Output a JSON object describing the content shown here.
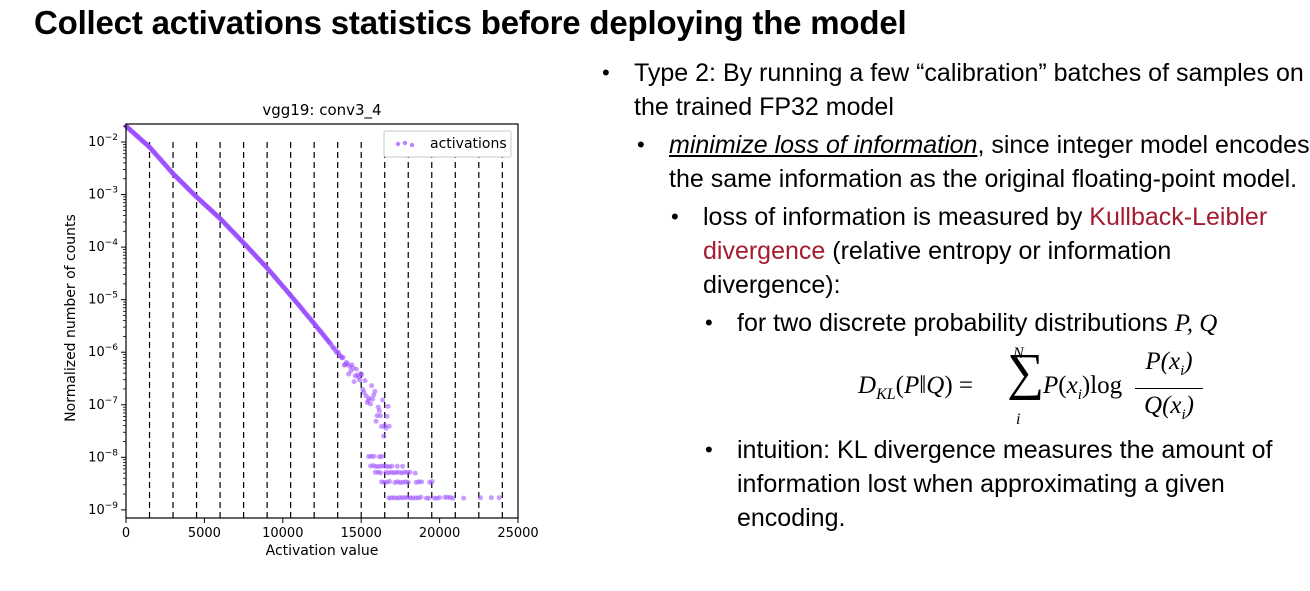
{
  "slide": {
    "title": "Collect activations statistics before deploying the model"
  },
  "bullets": {
    "type2": "Type 2: By running a few “calibration” batches of samples on the trained FP32 model",
    "minimize_em": "minimize loss of information",
    "minimize_rest": ", since integer model encodes the same information as the original floating-point model.",
    "loss_pre": "loss of information is measured by ",
    "kl_link": "Kullback-Leibler divergence",
    "loss_post": " (relative entropy or information divergence):",
    "discrete": "for two discrete probability distributions ",
    "discrete_vars": "P, Q",
    "intuition": "intuition: KL divergence measures the amount of information lost when approximating a given encoding."
  },
  "formula": {
    "lhs": "D_KL(P‖Q) =",
    "sum_upper": "N",
    "sum_lower": "i",
    "term": "P(x_i)log",
    "numerator": "P(x_i)",
    "denominator": "Q(x_i)"
  },
  "colors": {
    "accent_red": "#a51c30",
    "series": "#9b4dff"
  },
  "chart_data": {
    "type": "scatter",
    "title": "vgg19: conv3_4",
    "xlabel": "Activation value",
    "ylabel": "Normalized number of counts",
    "xlim": [
      0,
      25000
    ],
    "ylim": [
      7e-10,
      0.022
    ],
    "yscale": "log",
    "xticks": [
      0,
      5000,
      10000,
      15000,
      20000,
      25000
    ],
    "xtick_labels": [
      "0",
      "5000",
      "10000",
      "15000",
      "20000",
      "25000"
    ],
    "yticks_exp": [
      -9,
      -8,
      -7,
      -6,
      -5,
      -4,
      -3,
      -2
    ],
    "legend": {
      "entries": [
        "activations"
      ],
      "position": "top-right"
    },
    "vlines": [
      1500,
      3000,
      4500,
      6000,
      7500,
      9000,
      10500,
      12000,
      13500,
      15000,
      16500,
      18000,
      19500,
      21000,
      22500,
      24000
    ],
    "vline_style": "dashed",
    "series": [
      {
        "name": "activations",
        "trend": [
          [
            0,
            0.02
          ],
          [
            1500,
            0.008
          ],
          [
            3000,
            0.0025
          ],
          [
            4500,
            0.0009
          ],
          [
            6000,
            0.00035
          ],
          [
            7500,
            0.00012
          ],
          [
            9000,
            4e-05
          ],
          [
            10000,
            1.8e-05
          ],
          [
            11000,
            8e-06
          ],
          [
            12000,
            3.5e-06
          ],
          [
            13000,
            1.5e-06
          ],
          [
            14000,
            6e-07
          ],
          [
            15000,
            2.5e-07
          ],
          [
            16000,
            9e-08
          ],
          [
            17000,
            3e-08
          ],
          [
            18000,
            1.2e-08
          ]
        ],
        "noisy_from": 13000,
        "tail_levels": [
          1.7e-09,
          3.4e-09,
          5.1e-09,
          6.8e-09,
          1.02e-08
        ],
        "tail_level_ranges": [
          [
            16600,
            21600
          ],
          [
            16300,
            19700
          ],
          [
            15900,
            18500
          ],
          [
            15600,
            17700
          ],
          [
            15300,
            17300
          ]
        ],
        "isolated_points": [
          [
            22600,
            1.7e-09
          ],
          [
            23300,
            1.7e-09
          ],
          [
            23800,
            1.7e-09
          ]
        ]
      }
    ]
  }
}
